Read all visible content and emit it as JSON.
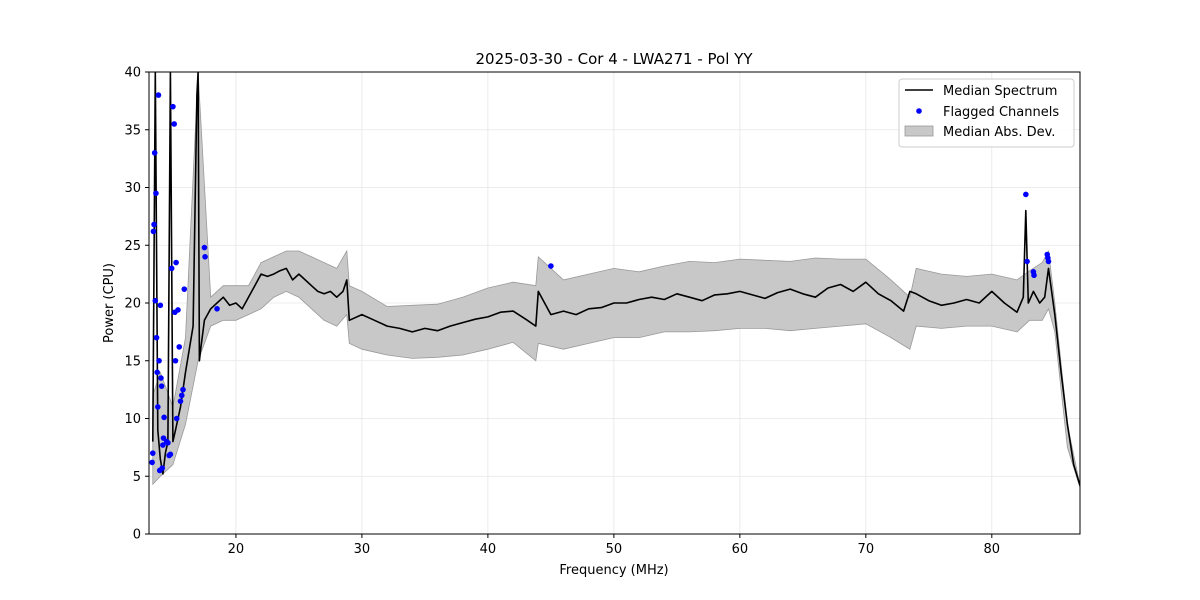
{
  "chart_data": {
    "type": "line",
    "title": "2025-03-30 - Cor 4 - LWA271 - Pol YY",
    "xlabel": "Frequency (MHz)",
    "ylabel": "Power (CPU)",
    "xlim": [
      13.1,
      87.0
    ],
    "ylim": [
      0,
      40
    ],
    "xticks": [
      20,
      30,
      40,
      50,
      60,
      70,
      80
    ],
    "yticks": [
      0,
      5,
      10,
      15,
      20,
      25,
      30,
      35,
      40
    ],
    "grid": true,
    "legend_position": "top-right",
    "legend": [
      {
        "label": "Median Spectrum",
        "kind": "line"
      },
      {
        "label": "Flagged Channels",
        "kind": "marker"
      },
      {
        "label": "Median Abs. Dev.",
        "kind": "band"
      }
    ],
    "colors": {
      "line": "#000000",
      "flagged": "#0000ff",
      "band": "#c8c8c8",
      "band_edge": "#999999",
      "grid": "#e6e6e6"
    },
    "median_spectrum": {
      "x": [
        13.4,
        13.6,
        13.8,
        14.0,
        14.2,
        14.4,
        14.6,
        14.8,
        15.0,
        15.2,
        15.4,
        15.6,
        15.8,
        16.0,
        16.3,
        16.6,
        16.9,
        17.0,
        17.1,
        17.2,
        17.5,
        18.0,
        18.5,
        19.0,
        19.5,
        20.0,
        20.5,
        21.0,
        21.5,
        22.0,
        22.5,
        23.0,
        23.5,
        24.0,
        24.5,
        25.0,
        25.5,
        26.0,
        26.5,
        27.0,
        27.5,
        28.0,
        28.5,
        28.8,
        29.0,
        30.0,
        31.0,
        32.0,
        33.0,
        34.0,
        35.0,
        36.0,
        37.0,
        38.0,
        39.0,
        40.0,
        41.0,
        42.0,
        43.0,
        43.8,
        44.0,
        45.0,
        46.0,
        47.0,
        48.0,
        49.0,
        50.0,
        51.0,
        52.0,
        53.0,
        54.0,
        55.0,
        56.0,
        57.0,
        58.0,
        59.0,
        60.0,
        61.0,
        62.0,
        63.0,
        64.0,
        65.0,
        66.0,
        67.0,
        68.0,
        69.0,
        70.0,
        71.0,
        72.0,
        73.0,
        73.5,
        74.0,
        75.0,
        76.0,
        77.0,
        78.0,
        79.0,
        80.0,
        81.0,
        82.0,
        82.5,
        82.7,
        82.9,
        83.3,
        83.8,
        84.2,
        84.5,
        85.0,
        85.5,
        86.0,
        86.5,
        87.0
      ],
      "y": [
        8.0,
        40.0,
        9.0,
        6.5,
        5.2,
        7.0,
        8.0,
        40.0,
        8.0,
        9.0,
        10.0,
        11.0,
        12.5,
        14.0,
        16.0,
        18.0,
        38.0,
        40.0,
        15.0,
        16.0,
        18.5,
        19.5,
        20.0,
        20.5,
        19.8,
        20.0,
        19.5,
        20.5,
        21.5,
        22.5,
        22.3,
        22.5,
        22.8,
        23.0,
        22.0,
        22.5,
        22.0,
        21.5,
        21.0,
        20.8,
        21.0,
        20.5,
        21.0,
        22.0,
        18.5,
        19.0,
        18.5,
        18.0,
        17.8,
        17.5,
        17.8,
        17.6,
        18.0,
        18.3,
        18.6,
        18.8,
        19.2,
        19.3,
        18.6,
        18.0,
        21.0,
        19.0,
        19.3,
        19.0,
        19.5,
        19.6,
        20.0,
        20.0,
        20.3,
        20.5,
        20.3,
        20.8,
        20.5,
        20.2,
        20.7,
        20.8,
        21.0,
        20.7,
        20.4,
        20.9,
        21.2,
        20.8,
        20.5,
        21.3,
        21.6,
        21.0,
        21.8,
        20.8,
        20.2,
        19.3,
        21.0,
        20.8,
        20.2,
        19.8,
        20.0,
        20.3,
        20.0,
        21.0,
        20.0,
        19.2,
        20.5,
        28.0,
        20.0,
        21.0,
        20.0,
        20.5,
        23.0,
        19.0,
        14.0,
        9.5,
        6.0,
        4.2
      ]
    },
    "median_abs_dev": {
      "x": [
        13.4,
        14.0,
        15.0,
        16.0,
        17.0,
        18.0,
        19.0,
        20.0,
        21.0,
        22.0,
        23.0,
        24.0,
        25.0,
        26.0,
        27.0,
        28.0,
        28.8,
        29.0,
        30.0,
        32.0,
        34.0,
        36.0,
        38.0,
        40.0,
        42.0,
        43.8,
        44.0,
        46.0,
        48.0,
        50.0,
        52.0,
        54.0,
        56.0,
        58.0,
        60.0,
        62.0,
        64.0,
        66.0,
        68.0,
        70.0,
        72.0,
        73.5,
        74.0,
        76.0,
        78.0,
        80.0,
        82.0,
        83.0,
        84.0,
        84.5,
        85.0,
        86.0,
        87.0
      ],
      "upper": [
        12.0,
        14.0,
        11.0,
        17.0,
        40.0,
        20.5,
        21.5,
        21.5,
        21.5,
        23.5,
        24.0,
        24.5,
        24.5,
        24.0,
        23.5,
        23.0,
        24.5,
        21.5,
        21.0,
        19.7,
        19.8,
        19.9,
        20.5,
        21.3,
        21.8,
        21.5,
        24.0,
        22.0,
        22.5,
        23.0,
        22.7,
        23.2,
        23.6,
        23.5,
        23.8,
        23.7,
        23.6,
        23.9,
        23.8,
        23.8,
        22.0,
        20.5,
        23.0,
        22.5,
        22.3,
        22.5,
        22.0,
        22.8,
        23.5,
        24.5,
        20.0,
        9.5,
        4.2
      ],
      "lower": [
        4.3,
        5.0,
        6.0,
        9.5,
        15.0,
        18.0,
        18.5,
        18.5,
        19.0,
        19.5,
        20.5,
        21.0,
        20.5,
        19.5,
        18.5,
        18.0,
        19.0,
        16.5,
        16.0,
        15.5,
        15.2,
        15.3,
        15.5,
        16.0,
        16.6,
        15.0,
        16.5,
        16.0,
        16.5,
        17.0,
        17.0,
        17.5,
        17.5,
        17.6,
        17.8,
        17.8,
        17.6,
        17.8,
        18.0,
        18.2,
        17.0,
        16.0,
        18.0,
        17.8,
        18.0,
        18.0,
        17.5,
        18.5,
        18.5,
        19.5,
        17.5,
        7.5,
        4.0
      ]
    },
    "flagged_channels": {
      "x": [
        13.35,
        13.4,
        13.45,
        13.5,
        13.55,
        13.6,
        13.65,
        13.7,
        13.75,
        13.8,
        13.85,
        13.9,
        13.95,
        14.0,
        14.05,
        14.1,
        14.15,
        14.2,
        14.25,
        14.3,
        14.5,
        14.6,
        14.7,
        14.8,
        14.9,
        15.0,
        15.1,
        15.15,
        15.2,
        15.25,
        15.3,
        15.4,
        15.5,
        15.6,
        15.7,
        15.8,
        15.9,
        17.5,
        17.55,
        18.5,
        45.0,
        82.7,
        82.8,
        83.3,
        83.35,
        84.4,
        84.45,
        84.5
      ],
      "y": [
        6.2,
        7.0,
        26.2,
        26.8,
        33.0,
        20.2,
        29.5,
        17.0,
        14.0,
        11.0,
        38.0,
        15.0,
        5.5,
        19.8,
        13.5,
        12.8,
        5.7,
        7.7,
        8.3,
        10.1,
        8.0,
        7.9,
        6.8,
        6.9,
        23.0,
        37.0,
        35.5,
        19.2,
        15.0,
        23.5,
        10.0,
        19.4,
        16.2,
        11.5,
        12.0,
        12.5,
        21.2,
        24.8,
        24.0,
        19.5,
        23.2,
        29.4,
        23.6,
        22.7,
        22.4,
        24.2,
        23.9,
        23.6
      ]
    }
  }
}
